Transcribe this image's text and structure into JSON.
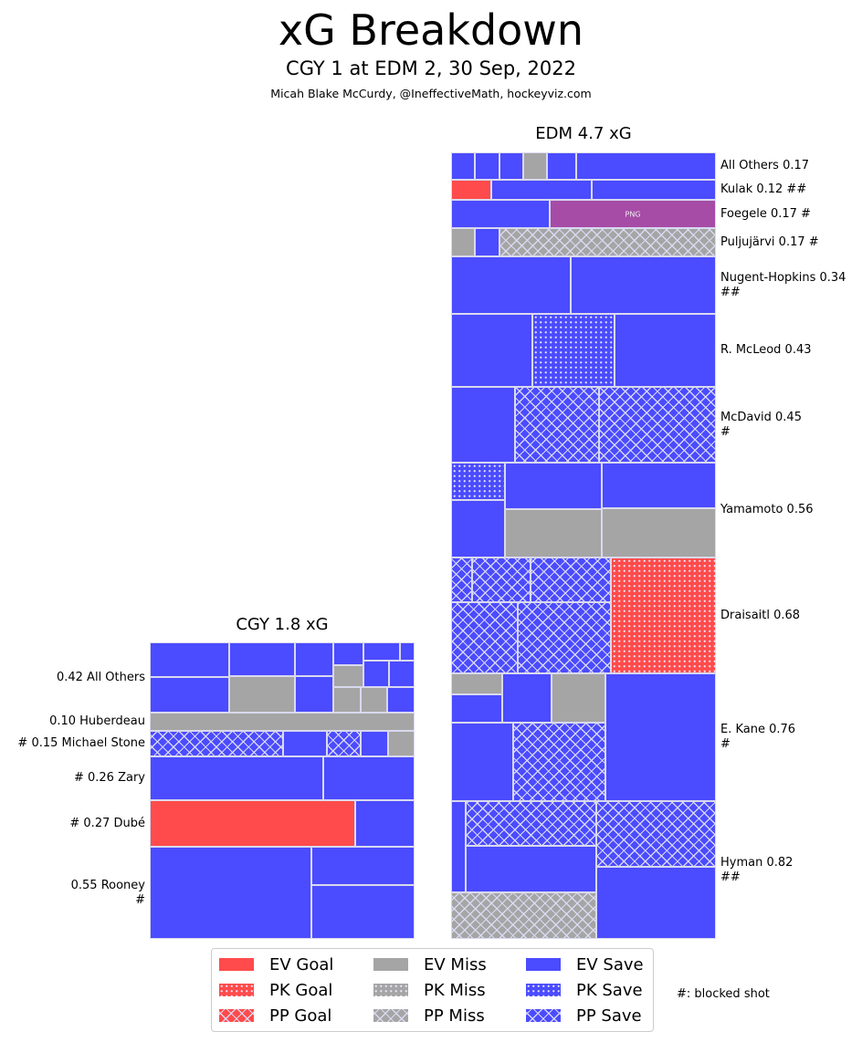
{
  "header": {
    "title": "xG Breakdown",
    "subtitle": "CGY 1 at EDM 2, 30 Sep, 2022",
    "credit": "Micah Blake McCurdy, @IneffectiveMath, hockeyviz.com"
  },
  "colors": {
    "goal": "#ff4b4b",
    "miss": "#a5a5a5",
    "save": "#4b4bff",
    "other": "#a64ca6",
    "border": "#d9d9ee"
  },
  "chart_data": {
    "type": "treemap",
    "title": "xG Breakdown",
    "teams": [
      {
        "name": "CGY",
        "title": "CGY 1.8 xG",
        "total_xg": 1.8,
        "label_side": "left",
        "rows": [
          {
            "label": "0.42 All Others",
            "player": "All Others",
            "xg": 0.42,
            "blocked": ""
          },
          {
            "label": "0.10 Huberdeau",
            "player": "Huberdeau",
            "xg": 0.1,
            "blocked": ""
          },
          {
            "label": "# 0.15 Michael Stone",
            "player": "Michael Stone",
            "xg": 0.15,
            "blocked": "#"
          },
          {
            "label": "# 0.26 Zary",
            "player": "Zary",
            "xg": 0.26,
            "blocked": "#"
          },
          {
            "label": "# 0.27 Dubé",
            "player": "Dubé",
            "xg": 0.27,
            "blocked": "#"
          },
          {
            "label": "0.55 Rooney\n#",
            "player": "Rooney",
            "xg": 0.55,
            "blocked": "#"
          }
        ],
        "shots": [
          [
            "EV Save",
            "EV Save",
            "EV Save",
            "EV Save",
            "EV Save",
            "EV Save",
            "EV Save",
            "EV Miss",
            "EV Miss",
            "EV Miss",
            "EV Miss",
            "EV Save",
            "EV Save",
            "EV Save",
            "EV Save"
          ],
          [
            "EV Miss"
          ],
          [
            "PP Save",
            "EV Save",
            "PP Save",
            "EV Save",
            "EV Miss"
          ],
          [
            "EV Save",
            "EV Save"
          ],
          [
            "EV Goal",
            "EV Save"
          ],
          [
            "EV Save",
            "EV Save",
            "EV Save"
          ]
        ]
      },
      {
        "name": "EDM",
        "title": "EDM 4.7 xG",
        "total_xg": 4.7,
        "label_side": "right",
        "rows": [
          {
            "label": "All Others 0.17",
            "player": "All Others",
            "xg": 0.17,
            "blocked": ""
          },
          {
            "label": "Kulak 0.12 ##",
            "player": "Kulak",
            "xg": 0.12,
            "blocked": "##"
          },
          {
            "label": "Foegele 0.17 #",
            "player": "Foegele",
            "xg": 0.17,
            "blocked": "#"
          },
          {
            "label": "Puljujärvi 0.17 #",
            "player": "Puljujärvi",
            "xg": 0.17,
            "blocked": "#"
          },
          {
            "label": "Nugent-Hopkins 0.34\n##",
            "player": "Nugent-Hopkins",
            "xg": 0.34,
            "blocked": "##"
          },
          {
            "label": "R. McLeod 0.43",
            "player": "R. McLeod",
            "xg": 0.43,
            "blocked": ""
          },
          {
            "label": "McDavid 0.45\n#",
            "player": "McDavid",
            "xg": 0.45,
            "blocked": "#"
          },
          {
            "label": "Yamamoto 0.56",
            "player": "Yamamoto",
            "xg": 0.56,
            "blocked": ""
          },
          {
            "label": "Draisaitl 0.68",
            "player": "Draisaitl",
            "xg": 0.68,
            "blocked": ""
          },
          {
            "label": "E. Kane 0.76\n#",
            "player": "E. Kane",
            "xg": 0.76,
            "blocked": "#"
          },
          {
            "label": "Hyman 0.82\n##",
            "player": "Hyman",
            "xg": 0.82,
            "blocked": "##"
          }
        ],
        "shots": [
          [
            "EV Save",
            "EV Save",
            "EV Save",
            "EV Miss",
            "EV Save",
            "EV Save"
          ],
          [
            "EV Goal",
            "EV Save",
            "EV Save"
          ],
          [
            "EV Save",
            "Other"
          ],
          [
            "EV Miss",
            "EV Save",
            "PP Miss"
          ],
          [
            "EV Save",
            "EV Save"
          ],
          [
            "EV Save",
            "PK Save",
            "EV Save"
          ],
          [
            "EV Save",
            "PP Save",
            "PP Save"
          ],
          [
            "PK Save",
            "EV Save",
            "EV Save",
            "EV Save",
            "EV Miss",
            "EV Miss"
          ],
          [
            "PP Save",
            "PP Save",
            "PP Save",
            "PP Save",
            "PP Save",
            "PK Goal"
          ],
          [
            "EV Miss",
            "EV Save",
            "EV Save",
            "EV Miss",
            "EV Save",
            "PP Save",
            "EV Save"
          ],
          [
            "EV Save",
            "PP Save",
            "EV Save",
            "PP Miss",
            "PP Save",
            "EV Save"
          ]
        ],
        "other_block_text": "PNG"
      }
    ],
    "legend": {
      "placement": "bottom-center",
      "items": [
        {
          "label": "EV Goal",
          "type": "EV Goal"
        },
        {
          "label": "PK Goal",
          "type": "PK Goal"
        },
        {
          "label": "PP Goal",
          "type": "PP Goal"
        },
        {
          "label": "EV Miss",
          "type": "EV Miss"
        },
        {
          "label": "PK Miss",
          "type": "PK Miss"
        },
        {
          "label": "PP Miss",
          "type": "PP Miss"
        },
        {
          "label": "EV Save",
          "type": "EV Save"
        },
        {
          "label": "PK Save",
          "type": "PK Save"
        },
        {
          "label": "PP Save",
          "type": "PP Save"
        }
      ]
    },
    "note": "#: blocked shot"
  }
}
